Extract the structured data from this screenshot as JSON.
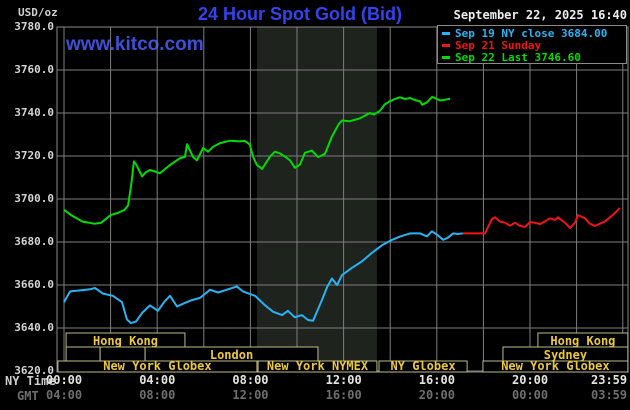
{
  "header": {
    "unit_label": "USD/oz",
    "title": "24 Hour Spot Gold (Bid)",
    "site": "www.kitco.com",
    "datetime": "September 22, 2025 16:40"
  },
  "legend": {
    "items": [
      {
        "label": "Sep 19 NY close 3684.00",
        "color": "#28b4f4"
      },
      {
        "label": "Sep 21 Sunday",
        "color": "#f01414"
      },
      {
        "label": "Sep 22 Last 3746.60",
        "color": "#00dc00"
      }
    ]
  },
  "axes": {
    "y_unit": "USD/oz",
    "y_ticks": [
      {
        "value": 3780,
        "label": "3780.0"
      },
      {
        "value": 3760,
        "label": "3760.0"
      },
      {
        "value": 3740,
        "label": "3740.0"
      },
      {
        "value": 3720,
        "label": "3720.0"
      },
      {
        "value": 3700,
        "label": "3700.0"
      },
      {
        "value": 3680,
        "label": "3680.0"
      },
      {
        "value": 3660,
        "label": "3660.0"
      },
      {
        "value": 3640,
        "label": "3640.0"
      },
      {
        "value": 3620,
        "label": "3620.0"
      }
    ],
    "x_rows": [
      {
        "name": "NY Time",
        "ticks": [
          {
            "hour": 0,
            "label": "00:00"
          },
          {
            "hour": 4,
            "label": "04:00"
          },
          {
            "hour": 8,
            "label": "08:00"
          },
          {
            "hour": 12,
            "label": "12:00"
          },
          {
            "hour": 16,
            "label": "16:00"
          },
          {
            "hour": 20,
            "label": "20:00"
          },
          {
            "hour": 23.983,
            "label": "23:59"
          }
        ]
      },
      {
        "name": "GMT",
        "ticks": [
          {
            "hour": 0,
            "label": "04:00"
          },
          {
            "hour": 4,
            "label": "08:00"
          },
          {
            "hour": 8,
            "label": "12:00"
          },
          {
            "hour": 12,
            "label": "16:00"
          },
          {
            "hour": 16,
            "label": "20:00"
          },
          {
            "hour": 20,
            "label": "00:00"
          },
          {
            "hour": 23.983,
            "label": "03:59"
          }
        ]
      }
    ],
    "grid_hour_step": 2
  },
  "sessions": {
    "rows": [
      [
        {
          "label": "Hong Kong",
          "start": 0.09,
          "end": 5.19
        },
        {
          "label": "Hong Kong",
          "start": 20.34,
          "end": 24.2
        }
      ],
      [
        {
          "label": "",
          "start": 0.09,
          "end": 1.55
        },
        {
          "label": "",
          "start": 1.55,
          "end": 3.48
        },
        {
          "label": "London",
          "start": 3.48,
          "end": 10.9
        },
        {
          "label": "Sydney",
          "start": 18.84,
          "end": 24.2
        }
      ],
      [
        {
          "label": "New York Globex",
          "start": -0.26,
          "end": 8.28
        },
        {
          "label": "New York NYMEX",
          "start": 8.33,
          "end": 13.43
        },
        {
          "label": "NY Globex",
          "start": 13.52,
          "end": 17.3
        },
        {
          "label": "New York Globex",
          "start": 17.98,
          "end": 24.2
        }
      ]
    ],
    "text_color": "#ecc83c",
    "border_color": "#bcbc84"
  },
  "chart_data": {
    "type": "line",
    "title": "24 Hour Spot Gold (Bid)",
    "xlabel": "Time (NY Time / GMT)",
    "ylabel": "USD/oz",
    "xlim_hours": [
      0,
      24.2
    ],
    "ylim": [
      3620,
      3780
    ],
    "grid": true,
    "shaded_band_hours": {
      "start": 8.28,
      "end": 13.43
    },
    "series": [
      {
        "name": "Sep 19 NY close 3684.00",
        "color": "#28b4f4",
        "points": [
          [
            0,
            3652
          ],
          [
            0.26,
            3657
          ],
          [
            0.7,
            3657.5
          ],
          [
            1.12,
            3658
          ],
          [
            1.33,
            3658.6
          ],
          [
            1.67,
            3656
          ],
          [
            2.1,
            3655
          ],
          [
            2.49,
            3652
          ],
          [
            2.7,
            3644
          ],
          [
            2.87,
            3642.3
          ],
          [
            3.09,
            3643
          ],
          [
            3.35,
            3647
          ],
          [
            3.69,
            3650.5
          ],
          [
            4.03,
            3648
          ],
          [
            4.33,
            3652.5
          ],
          [
            4.55,
            3655
          ],
          [
            4.85,
            3650
          ],
          [
            5.15,
            3651.5
          ],
          [
            5.49,
            3653
          ],
          [
            5.84,
            3654
          ],
          [
            6.27,
            3657.8
          ],
          [
            6.61,
            3656.5
          ],
          [
            7.04,
            3658
          ],
          [
            7.42,
            3659.3
          ],
          [
            7.68,
            3657
          ],
          [
            8.2,
            3655
          ],
          [
            8.63,
            3650.5
          ],
          [
            8.97,
            3647.6
          ],
          [
            9.36,
            3646
          ],
          [
            9.61,
            3648
          ],
          [
            9.91,
            3645
          ],
          [
            10.21,
            3646
          ],
          [
            10.47,
            3643.7
          ],
          [
            10.69,
            3643.4
          ],
          [
            11.07,
            3653
          ],
          [
            11.29,
            3659
          ],
          [
            11.5,
            3663
          ],
          [
            11.72,
            3660
          ],
          [
            11.93,
            3664.6
          ],
          [
            12.36,
            3668
          ],
          [
            12.79,
            3671
          ],
          [
            13.22,
            3675
          ],
          [
            13.65,
            3678.5
          ],
          [
            14.08,
            3681
          ],
          [
            14.42,
            3682.5
          ],
          [
            14.85,
            3684
          ],
          [
            15.28,
            3684
          ],
          [
            15.58,
            3682.6
          ],
          [
            15.79,
            3685
          ],
          [
            16.0,
            3683.5
          ],
          [
            16.27,
            3681
          ],
          [
            16.48,
            3682
          ],
          [
            16.7,
            3684
          ],
          [
            16.91,
            3683.7
          ],
          [
            17.12,
            3684
          ]
        ]
      },
      {
        "name": "Sep 21 Sunday",
        "color": "#f01414",
        "points": [
          [
            17.12,
            3684
          ],
          [
            18.07,
            3684
          ],
          [
            18.2,
            3687
          ],
          [
            18.37,
            3690.7
          ],
          [
            18.5,
            3691.5
          ],
          [
            18.71,
            3689.5
          ],
          [
            18.93,
            3689
          ],
          [
            19.14,
            3687.6
          ],
          [
            19.36,
            3689
          ],
          [
            19.57,
            3687.5
          ],
          [
            19.79,
            3687
          ],
          [
            20.0,
            3689.3
          ],
          [
            20.21,
            3689
          ],
          [
            20.43,
            3688.3
          ],
          [
            20.64,
            3689.6
          ],
          [
            20.86,
            3691
          ],
          [
            21.07,
            3690.3
          ],
          [
            21.2,
            3691.5
          ],
          [
            21.37,
            3690
          ],
          [
            21.5,
            3689
          ],
          [
            21.72,
            3686.5
          ],
          [
            21.93,
            3689
          ],
          [
            22.06,
            3692.5
          ],
          [
            22.36,
            3691
          ],
          [
            22.57,
            3688.5
          ],
          [
            22.79,
            3687.5
          ],
          [
            23.0,
            3688.5
          ],
          [
            23.21,
            3689.5
          ],
          [
            23.43,
            3691.5
          ],
          [
            23.6,
            3693
          ],
          [
            23.73,
            3694.5
          ],
          [
            23.86,
            3695.8
          ]
        ]
      },
      {
        "name": "Sep 22 Last 3746.60",
        "color": "#00dc00",
        "points": [
          [
            0,
            3695
          ],
          [
            0.3,
            3692.5
          ],
          [
            0.8,
            3689.5
          ],
          [
            1.3,
            3688.5
          ],
          [
            1.6,
            3689
          ],
          [
            2.0,
            3692.5
          ],
          [
            2.3,
            3693.5
          ],
          [
            2.6,
            3695
          ],
          [
            2.75,
            3697
          ],
          [
            2.9,
            3708
          ],
          [
            3.0,
            3717.5
          ],
          [
            3.1,
            3716
          ],
          [
            3.35,
            3710.5
          ],
          [
            3.52,
            3712.5
          ],
          [
            3.69,
            3713.5
          ],
          [
            4.12,
            3712
          ],
          [
            4.55,
            3715.8
          ],
          [
            4.98,
            3719
          ],
          [
            5.19,
            3719.5
          ],
          [
            5.28,
            3725.5
          ],
          [
            5.54,
            3719.5
          ],
          [
            5.71,
            3718
          ],
          [
            5.97,
            3723.7
          ],
          [
            6.18,
            3722
          ],
          [
            6.4,
            3724.3
          ],
          [
            6.7,
            3726
          ],
          [
            7.12,
            3727.1
          ],
          [
            7.55,
            3726.8
          ],
          [
            7.77,
            3727
          ],
          [
            7.98,
            3725.3
          ],
          [
            8.11,
            3719.7
          ],
          [
            8.28,
            3715.8
          ],
          [
            8.5,
            3714
          ],
          [
            8.84,
            3719.7
          ],
          [
            9.05,
            3722
          ],
          [
            9.27,
            3721.2
          ],
          [
            9.48,
            3719.7
          ],
          [
            9.7,
            3718
          ],
          [
            9.91,
            3714.5
          ],
          [
            10.13,
            3716
          ],
          [
            10.34,
            3721.5
          ],
          [
            10.64,
            3722.5
          ],
          [
            10.9,
            3719.5
          ],
          [
            11.2,
            3721
          ],
          [
            11.5,
            3729
          ],
          [
            11.8,
            3735
          ],
          [
            11.93,
            3736.5
          ],
          [
            12.27,
            3736.2
          ],
          [
            12.7,
            3737.5
          ],
          [
            13.13,
            3740
          ],
          [
            13.3,
            3739.3
          ],
          [
            13.56,
            3741
          ],
          [
            13.77,
            3744
          ],
          [
            13.99,
            3745.5
          ],
          [
            14.2,
            3746.5
          ],
          [
            14.42,
            3747.3
          ],
          [
            14.63,
            3746.5
          ],
          [
            14.85,
            3747
          ],
          [
            15.06,
            3746
          ],
          [
            15.28,
            3745.5
          ],
          [
            15.37,
            3743.8
          ],
          [
            15.58,
            3745
          ],
          [
            15.8,
            3747.5
          ],
          [
            16.01,
            3746.5
          ],
          [
            16.14,
            3745.8
          ],
          [
            16.35,
            3746.2
          ],
          [
            16.57,
            3746.6
          ]
        ]
      }
    ]
  },
  "colors": {
    "background": "#000000",
    "grid": "#7e7e7e",
    "plot_border": "#8a8a8a",
    "shaded_band": "#1e231e",
    "title_blue": "#3344ee",
    "site_blue": "#3c50d8"
  }
}
